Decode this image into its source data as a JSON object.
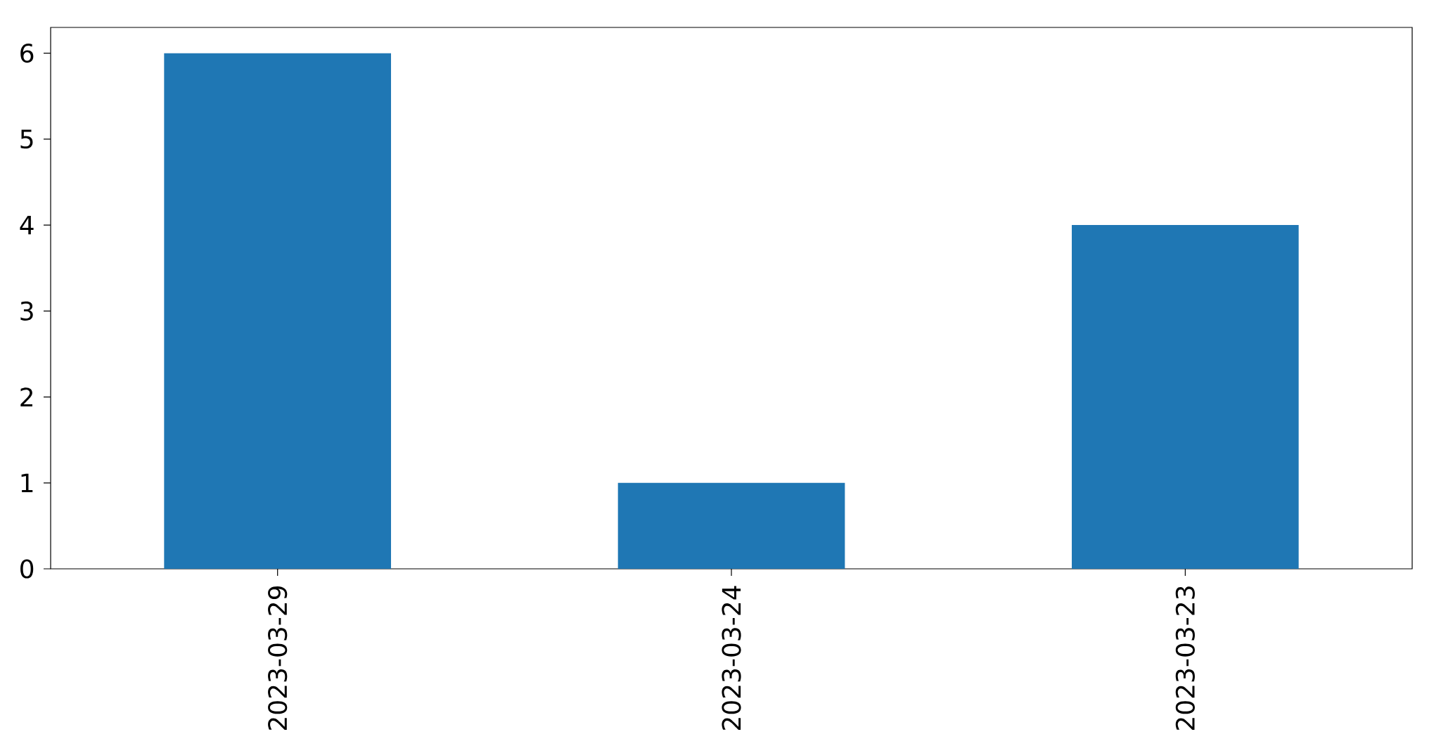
{
  "chart_data": {
    "type": "bar",
    "categories": [
      "2023-03-29",
      "2023-03-24",
      "2023-03-23"
    ],
    "values": [
      6,
      1,
      4
    ],
    "color": "#1f77b4",
    "ylim": [
      0,
      6.3
    ],
    "yticks": [
      0,
      1,
      2,
      3,
      4,
      5,
      6
    ]
  }
}
